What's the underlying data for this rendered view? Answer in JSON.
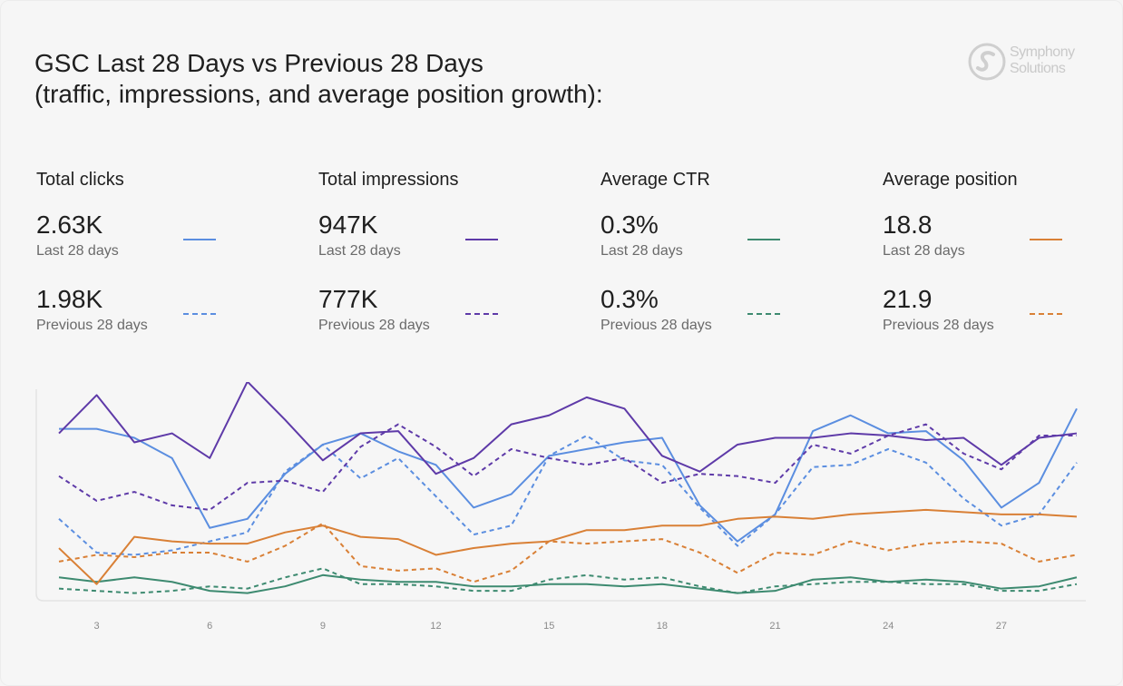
{
  "title": "GSC Last 28 Days vs Previous 28 Days",
  "subtitle": "(traffic, impressions, and average position growth):",
  "logo": {
    "text_line1": "Symphony",
    "text_line2": "Solutions",
    "icon": "symphony-swirl-icon"
  },
  "metrics": [
    {
      "title": "Total clicks",
      "last_value": "2.63K",
      "last_label": "Last 28 days",
      "prev_value": "1.98K",
      "prev_label": "Previous 28 days",
      "color": "#5b8ee0"
    },
    {
      "title": "Total impressions",
      "last_value": "947K",
      "last_label": "Last 28 days",
      "prev_value": "777K",
      "prev_label": "Previous 28 days",
      "color": "#5e3aa8"
    },
    {
      "title": "Average CTR",
      "last_value": "0.3%",
      "last_label": "Last 28 days",
      "prev_value": "0.3%",
      "prev_label": "Previous 28 days",
      "color": "#3d8a70"
    },
    {
      "title": "Average position",
      "last_value": "18.8",
      "last_label": "Last 28 days",
      "prev_value": "21.9",
      "prev_label": "Previous 28 days",
      "color": "#d98036"
    }
  ],
  "chart_data": {
    "type": "line",
    "x": [
      2,
      3,
      4,
      5,
      6,
      7,
      8,
      9,
      10,
      11,
      12,
      13,
      14,
      15,
      16,
      17,
      18,
      19,
      20,
      21,
      22,
      23,
      24,
      25,
      26,
      27,
      28,
      29
    ],
    "x_tick_labels": [
      "3",
      "6",
      "9",
      "12",
      "15",
      "18",
      "21",
      "24",
      "27"
    ],
    "x_ticks": [
      3,
      6,
      9,
      12,
      15,
      18,
      21,
      24,
      27
    ],
    "y_axis_visible": false,
    "ylim": [
      0,
      100
    ],
    "grid": false,
    "series": [
      {
        "metric": "Total clicks",
        "period": "last",
        "color": "#5b8ee0",
        "dashed": false,
        "values": [
          80,
          80,
          76,
          67,
          36,
          40,
          60,
          73,
          78,
          70,
          64,
          45,
          51,
          68,
          71,
          74,
          76,
          46,
          30,
          42,
          79,
          86,
          78,
          79,
          66,
          45,
          56,
          89
        ]
      },
      {
        "metric": "Total clicks",
        "period": "previous",
        "color": "#5b8ee0",
        "dashed": true,
        "values": [
          40,
          25,
          24,
          26,
          30,
          34,
          61,
          73,
          58,
          67,
          50,
          33,
          37,
          68,
          77,
          66,
          64,
          45,
          28,
          42,
          63,
          64,
          71,
          65,
          49,
          37,
          42,
          65
        ]
      },
      {
        "metric": "Total impressions",
        "period": "last",
        "color": "#5e3aa8",
        "dashed": false,
        "values": [
          78,
          95,
          74,
          78,
          67,
          101,
          84,
          66,
          78,
          79,
          60,
          67,
          82,
          86,
          94,
          89,
          68,
          61,
          73,
          76,
          76,
          78,
          77,
          75,
          76,
          64,
          76,
          78
        ]
      },
      {
        "metric": "Total impressions",
        "period": "previous",
        "color": "#5e3aa8",
        "dashed": true,
        "values": [
          59,
          48,
          52,
          46,
          44,
          56,
          57,
          52,
          72,
          82,
          72,
          59,
          71,
          67,
          64,
          67,
          56,
          60,
          59,
          56,
          73,
          69,
          77,
          82,
          69,
          62,
          77,
          77
        ]
      },
      {
        "metric": "Average CTR",
        "period": "last",
        "color": "#3d8a70",
        "dashed": false,
        "values": [
          14,
          12,
          14,
          12,
          8,
          7,
          10,
          15,
          13,
          12,
          12,
          10,
          10,
          11,
          11,
          10,
          11,
          9,
          7,
          8,
          13,
          14,
          12,
          13,
          12,
          9,
          10,
          14
        ]
      },
      {
        "metric": "Average CTR",
        "period": "previous",
        "color": "#3d8a70",
        "dashed": true,
        "values": [
          9,
          8,
          7,
          8,
          10,
          9,
          14,
          18,
          11,
          11,
          10,
          8,
          8,
          13,
          15,
          13,
          14,
          10,
          7,
          10,
          11,
          12,
          12,
          11,
          11,
          8,
          8,
          11
        ]
      },
      {
        "metric": "Average position",
        "period": "last",
        "color": "#d98036",
        "dashed": false,
        "values": [
          27,
          11,
          32,
          30,
          29,
          29,
          34,
          37,
          32,
          31,
          24,
          27,
          29,
          30,
          35,
          35,
          37,
          37,
          40,
          41,
          40,
          42,
          43,
          44,
          43,
          42,
          42,
          41
        ]
      },
      {
        "metric": "Average position",
        "period": "previous",
        "color": "#d98036",
        "dashed": true,
        "values": [
          21,
          24,
          23,
          25,
          25,
          21,
          28,
          38,
          19,
          17,
          18,
          12,
          17,
          30,
          29,
          30,
          31,
          25,
          16,
          25,
          24,
          30,
          26,
          29,
          30,
          29,
          21,
          24
        ]
      }
    ]
  }
}
